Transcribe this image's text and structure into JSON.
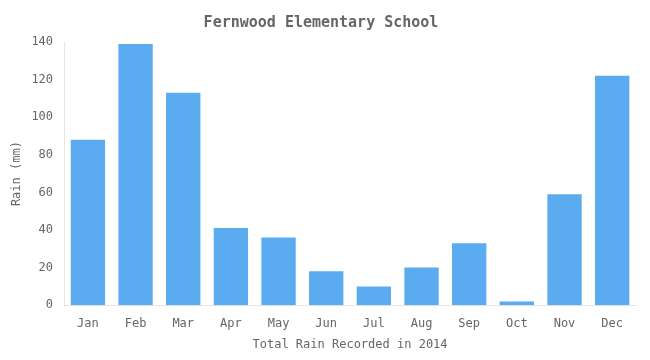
{
  "chart_data": {
    "type": "bar",
    "title": "Fernwood Elementary School",
    "xlabel": "Total Rain Recorded in 2014",
    "ylabel": "Rain (mm)",
    "categories": [
      "Jan",
      "Feb",
      "Mar",
      "Apr",
      "May",
      "Jun",
      "Jul",
      "Aug",
      "Sep",
      "Oct",
      "Nov",
      "Dec"
    ],
    "values": [
      88,
      139,
      113,
      41,
      36,
      18,
      10,
      20,
      33,
      2,
      59,
      122
    ],
    "color": "#5aabf0",
    "ylim": [
      0,
      140
    ],
    "yticks": [
      0,
      20,
      40,
      60,
      80,
      100,
      120,
      140
    ],
    "grid": false
  }
}
